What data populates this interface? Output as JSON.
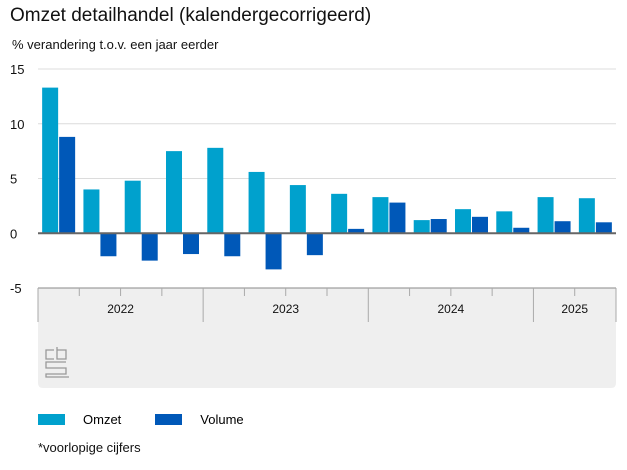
{
  "chart_data": {
    "type": "bar",
    "title": "Omzet detailhandel (kalendergecorrigeerd)",
    "subtitle": "% verandering t.o.v. een jaar eerder",
    "xlabel": "",
    "ylabel": "% verandering t.o.v. een jaar eerder",
    "ylim": [
      -5,
      15
    ],
    "yticks": [
      "15",
      "10",
      "5",
      "0",
      "-5"
    ],
    "ytick_values": [
      15,
      10,
      5,
      0,
      -5
    ],
    "grid": true,
    "categories": [
      "2022 Q1",
      "2022 Q2",
      "2022 Q3",
      "2022 Q4",
      "2023 Q1",
      "2023 Q2",
      "2023 Q3",
      "2023 Q4",
      "2024 Q1",
      "2024 Q2",
      "2024 Q3",
      "2024 Q4",
      "2025 Q1",
      "2025 Q2"
    ],
    "year_groups": [
      {
        "label": "2022",
        "quarters": 4
      },
      {
        "label": "2023",
        "quarters": 4
      },
      {
        "label": "2024",
        "quarters": 4
      },
      {
        "label": "2025",
        "quarters": 2
      }
    ],
    "series": [
      {
        "name": "Omzet",
        "color": "#00a1cd",
        "values": [
          13.3,
          4.0,
          4.8,
          7.5,
          7.8,
          5.6,
          4.4,
          3.6,
          3.3,
          1.2,
          2.2,
          2.0,
          3.3,
          3.2
        ]
      },
      {
        "name": "Volume",
        "color": "#0058b8",
        "values": [
          8.8,
          -2.1,
          -2.5,
          -1.9,
          -2.1,
          -3.3,
          -2.0,
          0.4,
          2.8,
          1.3,
          1.5,
          0.5,
          1.1,
          1.0
        ]
      }
    ],
    "legend_position": "bottom-left",
    "footnote": "*voorlopige cijfers",
    "logo_text": "cbs"
  }
}
